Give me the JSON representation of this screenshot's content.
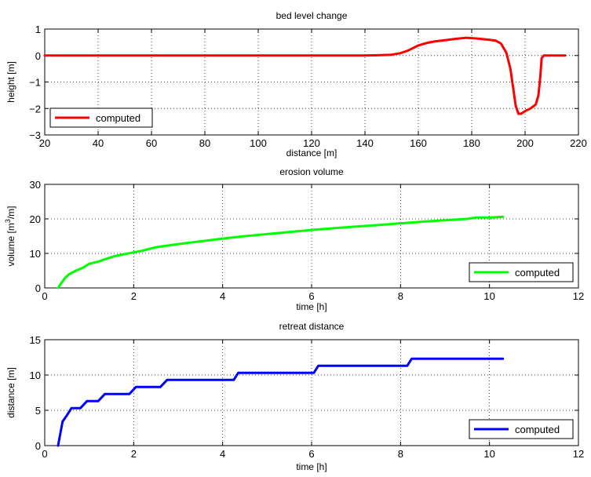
{
  "chart_data": [
    {
      "type": "line",
      "title": "bed level change",
      "xlabel": "distance [m]",
      "ylabel": "height [m]",
      "xlim": [
        20,
        220
      ],
      "ylim": [
        -3,
        1
      ],
      "xticks": [
        20,
        40,
        60,
        80,
        100,
        120,
        140,
        160,
        180,
        200,
        220
      ],
      "yticks": [
        -3,
        -2,
        -1,
        0,
        1
      ],
      "grid": true,
      "legend_position": "bottom-left",
      "series": [
        {
          "name": "computed",
          "color": "#ff0000",
          "x": [
            20,
            40,
            60,
            80,
            100,
            120,
            140,
            145,
            150,
            153,
            156,
            158,
            160,
            163,
            166,
            170,
            174,
            178,
            182,
            186,
            189,
            191,
            193,
            194.5,
            195.5,
            196.5,
            197.5,
            198.5,
            200,
            202,
            204,
            205,
            205.7,
            206.2,
            207,
            210,
            215
          ],
          "y": [
            0,
            0,
            0,
            0,
            0,
            0,
            0,
            0.01,
            0.03,
            0.08,
            0.18,
            0.28,
            0.38,
            0.47,
            0.53,
            0.58,
            0.63,
            0.67,
            0.64,
            0.6,
            0.56,
            0.45,
            0.1,
            -0.5,
            -1.2,
            -1.9,
            -2.2,
            -2.2,
            -2.1,
            -2.0,
            -1.85,
            -1.5,
            -0.8,
            -0.1,
            0,
            0,
            0
          ]
        }
      ]
    },
    {
      "type": "line",
      "title": "erosion volume",
      "xlabel": "time [h]",
      "ylabel_main": "volume [m",
      "ylabel_sup": "3",
      "ylabel_end": "/m]",
      "xlim": [
        0,
        12
      ],
      "ylim": [
        0,
        30
      ],
      "xticks": [
        0,
        2,
        4,
        6,
        8,
        10,
        12
      ],
      "yticks": [
        0,
        10,
        20,
        30
      ],
      "grid": true,
      "legend_position": "bottom-right",
      "series": [
        {
          "name": "computed",
          "color": "#00ff00",
          "x": [
            0.3,
            0.35,
            0.45,
            0.55,
            0.7,
            0.85,
            1.0,
            1.2,
            1.4,
            1.6,
            1.8,
            2.0,
            2.2,
            2.5,
            3.0,
            3.5,
            4.0,
            4.5,
            5.0,
            5.5,
            6.0,
            6.5,
            7.0,
            7.5,
            8.0,
            8.5,
            9.0,
            9.5,
            9.7,
            10.0,
            10.3
          ],
          "y": [
            0,
            1.0,
            2.8,
            4.0,
            5.0,
            5.8,
            7.0,
            7.6,
            8.5,
            9.3,
            9.8,
            10.3,
            10.8,
            11.8,
            12.7,
            13.5,
            14.3,
            15.0,
            15.6,
            16.2,
            16.8,
            17.3,
            17.8,
            18.2,
            18.7,
            19.2,
            19.6,
            20.0,
            20.4,
            20.4,
            20.6
          ]
        }
      ]
    },
    {
      "type": "line",
      "title": "retreat distance",
      "xlabel": "time [h]",
      "ylabel": "distance [m]",
      "xlim": [
        0,
        12
      ],
      "ylim": [
        0,
        15
      ],
      "xticks": [
        0,
        2,
        4,
        6,
        8,
        10,
        12
      ],
      "yticks": [
        0,
        5,
        10,
        15
      ],
      "grid": true,
      "legend_position": "bottom-right",
      "series": [
        {
          "name": "computed",
          "color": "#0000ff",
          "x": [
            0.3,
            0.4,
            0.5,
            0.6,
            0.8,
            0.95,
            1.0,
            1.2,
            1.35,
            1.4,
            1.9,
            2.05,
            2.1,
            2.6,
            2.75,
            2.8,
            4.25,
            4.35,
            4.4,
            6.05,
            6.15,
            6.2,
            8.15,
            8.25,
            8.3,
            10.3
          ],
          "y": [
            0,
            3.4,
            4.3,
            5.3,
            5.3,
            6.3,
            6.3,
            6.3,
            7.3,
            7.3,
            7.3,
            8.3,
            8.3,
            8.3,
            9.3,
            9.3,
            9.3,
            10.3,
            10.3,
            10.3,
            11.3,
            11.3,
            11.3,
            12.3,
            12.3,
            12.3
          ]
        }
      ]
    }
  ]
}
